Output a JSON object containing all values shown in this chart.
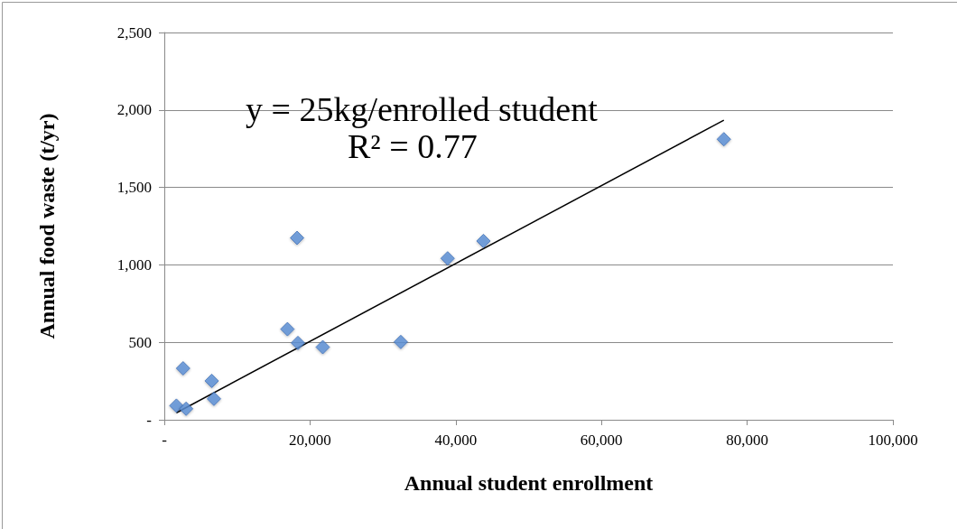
{
  "chart_data": {
    "type": "scatter",
    "xlabel": "Annual student enrollment",
    "ylabel": "Annual food waste (t/yr)",
    "annotations": [
      "y = 25kg/enrolled student",
      "R² = 0.77"
    ],
    "series": [
      {
        "color": "#5b8ed6",
        "marker": "diamond",
        "x": [
          1660,
          2990,
          2580,
          6510,
          6810,
          16900,
          18340,
          18220,
          21750,
          32460,
          38890,
          43800,
          76800
        ],
        "values": [
          91,
          71,
          332,
          251,
          135,
          585,
          496,
          1174,
          469,
          502,
          1042,
          1154,
          1811
        ]
      },
      {
        "type": "line",
        "color": "#000000",
        "marker": "none",
        "x": [
          1660,
          76800
        ],
        "values": [
          45,
          1934
        ]
      }
    ],
    "xlim": [
      0,
      100000
    ],
    "xticks": [
      {
        "value": 0,
        "label": "-"
      },
      {
        "value": 20000,
        "label": "20,000"
      },
      {
        "value": 40000,
        "label": "40,000"
      },
      {
        "value": 60000,
        "label": "60,000"
      },
      {
        "value": 80000,
        "label": "80,000"
      },
      {
        "value": 100000,
        "label": "100,000"
      }
    ],
    "ylim": [
      0,
      2500
    ],
    "yticks": [
      {
        "value": 0,
        "label": "-"
      },
      {
        "value": 500,
        "label": "500"
      },
      {
        "value": 1000,
        "label": "1,000"
      },
      {
        "value": 1500,
        "label": "1,500"
      },
      {
        "value": 2000,
        "label": "2,000"
      },
      {
        "value": 2500,
        "label": "2,500"
      }
    ],
    "grid": "y"
  }
}
